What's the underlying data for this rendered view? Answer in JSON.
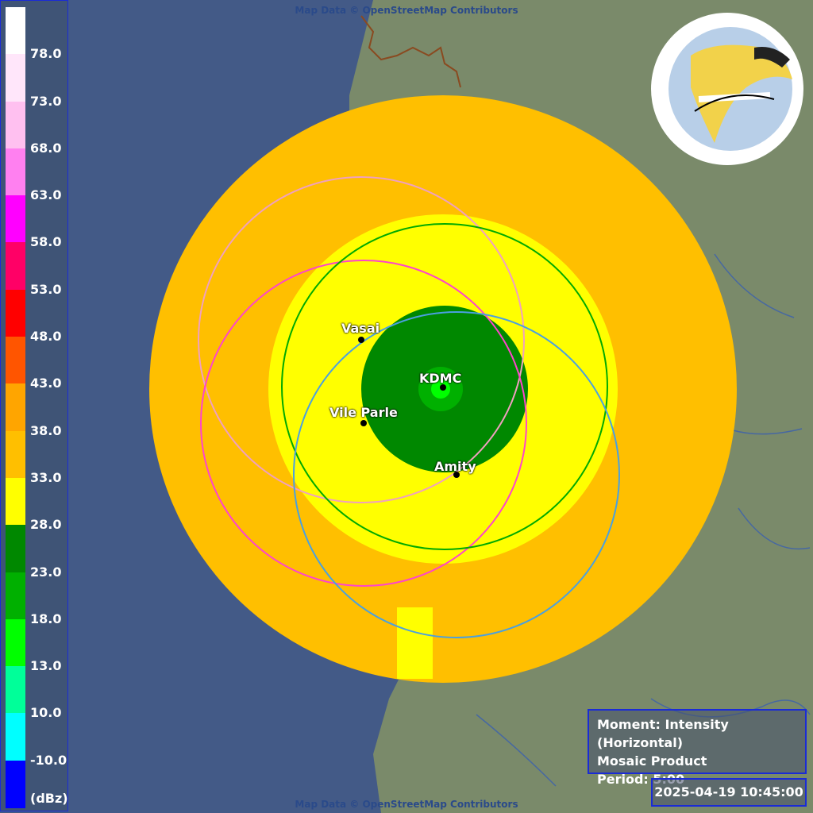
{
  "map": {
    "attribution_top": "Map Data © OpenStreetMap Contributors",
    "attribution_bottom": "Map Data © OpenStreetMap Contributors",
    "logo_icon": "iitm-logo-icon",
    "sites": [
      {
        "name": "Vasai"
      },
      {
        "name": "KDMC"
      },
      {
        "name": "Vile Parle"
      },
      {
        "name": "Amity"
      }
    ]
  },
  "legend": {
    "unit": "(dBz)",
    "labels": [
      "78.0",
      "73.0",
      "68.0",
      "63.0",
      "58.0",
      "53.0",
      "48.0",
      "43.0",
      "38.0",
      "33.0",
      "28.0",
      "23.0",
      "18.0",
      "13.0",
      "10.0",
      "-10.0"
    ],
    "colors": [
      "#ffffff",
      "#ffe6fa",
      "#ffc0f0",
      "#ff80f0",
      "#ff00ff",
      "#ff0066",
      "#ff0000",
      "#ff5500",
      "#ffa500",
      "#ffbf00",
      "#ffff00",
      "#008800",
      "#00b000",
      "#00ff00",
      "#00ff99",
      "#00ffff",
      "#0000ff"
    ]
  },
  "info": {
    "moment": "Moment: Intensity (Horizontal)",
    "product": "Mosaic Product",
    "period": "Period: 5:00"
  },
  "timestamp": "2025-04-19 10:45:00"
}
